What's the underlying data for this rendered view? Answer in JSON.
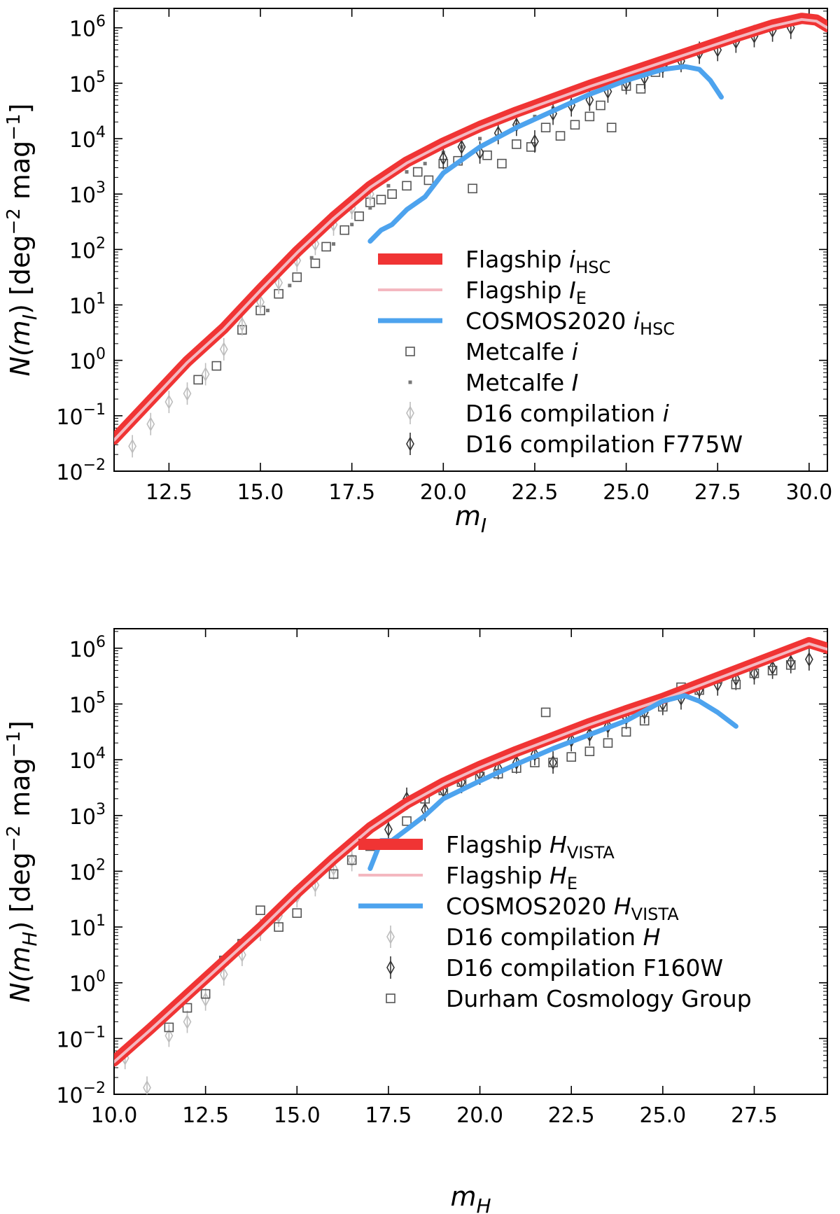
{
  "chart_data": [
    {
      "type": "line",
      "xlabel_base": "m",
      "xlabel_sub": "I",
      "ylabel_base": "N(m",
      "ylabel_sub": "I",
      "ylabel_tail": ") [deg",
      "ylabel_exp1": "−2",
      "ylabel_mid": " mag",
      "ylabel_exp2": "−1",
      "ylabel_end": "]",
      "xlim": [
        11.0,
        30.5
      ],
      "ylim_log10": [
        -2,
        6.35
      ],
      "log_y": true,
      "xticks": [
        "12.5",
        "15.0",
        "17.5",
        "20.0",
        "22.5",
        "25.0",
        "27.5",
        "30.0"
      ],
      "yticks": [
        {
          "base": "10",
          "exp": "−2"
        },
        {
          "base": "10",
          "exp": "−1"
        },
        {
          "base": "10",
          "exp": "0"
        },
        {
          "base": "10",
          "exp": "1"
        },
        {
          "base": "10",
          "exp": "2"
        },
        {
          "base": "10",
          "exp": "3"
        },
        {
          "base": "10",
          "exp": "4"
        },
        {
          "base": "10",
          "exp": "5"
        },
        {
          "base": "10",
          "exp": "6"
        }
      ],
      "legend_position": "lower-right",
      "series": [
        {
          "name": "Flagship",
          "sub": "HSC",
          "italic": "i",
          "kind": "thick-line",
          "color": "#f03434",
          "x": [
            11.0,
            12.0,
            13.0,
            14.0,
            15.0,
            16.0,
            17.0,
            18.0,
            19.0,
            20.0,
            21.0,
            22.0,
            23.0,
            24.0,
            25.0,
            26.0,
            27.0,
            28.0,
            29.0,
            29.8,
            30.2,
            30.5
          ],
          "log10_y": [
            -1.42,
            -0.72,
            -0.02,
            0.58,
            1.28,
            1.96,
            2.58,
            3.14,
            3.58,
            3.92,
            4.22,
            4.48,
            4.72,
            4.96,
            5.18,
            5.4,
            5.62,
            5.84,
            6.05,
            6.17,
            6.14,
            6.02
          ]
        },
        {
          "name": "Flagship",
          "sub": "E",
          "italic": "I",
          "kind": "thin-line",
          "color": "#f4b8c0",
          "x": [
            11.0,
            12.0,
            13.0,
            14.0,
            15.0,
            16.0,
            17.0,
            18.0,
            19.0,
            20.0,
            21.0,
            22.0,
            23.0,
            24.0,
            25.0,
            26.0,
            27.0,
            28.0,
            29.0,
            29.8,
            30.2,
            30.5
          ],
          "log10_y": [
            -1.44,
            -0.74,
            -0.04,
            0.56,
            1.26,
            1.94,
            2.56,
            3.12,
            3.56,
            3.9,
            4.2,
            4.46,
            4.7,
            4.94,
            5.16,
            5.38,
            5.6,
            5.82,
            6.03,
            6.15,
            6.12,
            6.0
          ]
        },
        {
          "name": "COSMOS2020",
          "sub": "HSC",
          "italic": "i",
          "kind": "line",
          "color": "#4da3ee",
          "x": [
            18.0,
            18.3,
            18.6,
            19.0,
            19.5,
            20.0,
            21.0,
            22.0,
            23.0,
            24.0,
            25.0,
            26.0,
            26.6,
            27.0,
            27.3,
            27.6
          ],
          "log10_y": [
            2.15,
            2.35,
            2.45,
            2.72,
            2.95,
            3.38,
            3.85,
            4.2,
            4.5,
            4.8,
            5.05,
            5.25,
            5.3,
            5.25,
            5.05,
            4.75
          ]
        },
        {
          "name": "Metcalfe",
          "italic": "i",
          "kind": "open-square",
          "color": "#555555",
          "x": [
            13.3,
            13.8,
            14.5,
            15.0,
            15.5,
            16.0,
            16.5,
            16.8,
            17.3,
            17.7,
            18.0,
            18.3,
            18.6,
            19.0,
            19.3,
            19.6,
            20.0,
            20.4,
            20.8,
            21.2,
            21.6,
            22.0,
            22.4,
            22.8,
            23.2,
            23.6,
            24.0,
            24.3,
            24.6,
            25.0,
            25.4,
            25.8,
            26.0
          ],
          "log10_y": [
            -0.35,
            -0.1,
            0.55,
            0.9,
            1.2,
            1.5,
            1.75,
            2.05,
            2.35,
            2.6,
            2.85,
            2.9,
            3.0,
            3.15,
            3.4,
            3.25,
            3.55,
            3.6,
            3.1,
            3.7,
            3.55,
            3.9,
            3.85,
            4.2,
            4.05,
            4.25,
            4.4,
            4.6,
            4.2,
            4.95,
            4.9,
            5.2,
            5.35
          ]
        },
        {
          "name": "Metcalfe",
          "italic": "I",
          "kind": "small-square",
          "color": "#777777",
          "x": [
            15.2,
            15.8,
            16.4,
            17.0,
            17.5,
            18.0,
            18.5,
            19.0,
            19.5,
            20.0,
            20.5,
            21.0,
            21.5,
            22.0,
            22.5,
            23.0
          ],
          "log10_y": [
            0.9,
            1.35,
            1.85,
            2.1,
            2.45,
            2.75,
            3.15,
            3.4,
            3.55,
            3.75,
            3.85,
            4.0,
            4.05,
            4.25,
            4.4,
            4.55
          ]
        },
        {
          "name": "D16 compilation",
          "italic": "i",
          "kind": "light-diamond",
          "color": "#bdbdbd",
          "x": [
            11.5,
            12.0,
            12.5,
            13.0,
            13.5,
            14.0,
            14.5,
            15.0,
            15.5,
            16.0,
            16.5,
            17.0,
            17.5,
            18.0
          ],
          "log10_y": [
            -1.55,
            -1.15,
            -0.75,
            -0.6,
            -0.25,
            0.2,
            0.65,
            1.05,
            1.4,
            1.8,
            2.1,
            2.45,
            2.75,
            3.0
          ]
        },
        {
          "name": "D16 compilation F775W",
          "kind": "dark-diamond",
          "color": "#333333",
          "x": [
            20.0,
            20.5,
            21.0,
            21.5,
            22.0,
            22.5,
            23.0,
            23.5,
            24.0,
            24.5,
            25.0,
            25.5,
            26.0,
            26.5,
            27.0,
            27.5,
            28.0,
            28.5,
            29.0,
            29.5
          ],
          "log10_y": [
            3.65,
            3.85,
            3.75,
            4.1,
            4.25,
            3.95,
            4.45,
            4.6,
            4.7,
            4.85,
            5.0,
            5.1,
            5.3,
            5.4,
            5.55,
            5.6,
            5.75,
            5.85,
            5.95,
            6.0
          ]
        }
      ]
    },
    {
      "type": "line",
      "xlabel_base": "m",
      "xlabel_sub": "H",
      "ylabel_base": "N(m",
      "ylabel_sub": "H",
      "ylabel_tail": ") [deg",
      "ylabel_exp1": "−2",
      "ylabel_mid": " mag",
      "ylabel_exp2": "−1",
      "ylabel_end": "]",
      "xlim": [
        10.0,
        29.5
      ],
      "ylim_log10": [
        -2,
        6.35
      ],
      "log_y": true,
      "xticks": [
        "10.0",
        "12.5",
        "15.0",
        "17.5",
        "20.0",
        "22.5",
        "25.0",
        "27.5"
      ],
      "yticks": [
        {
          "base": "10",
          "exp": "−2"
        },
        {
          "base": "10",
          "exp": "−1"
        },
        {
          "base": "10",
          "exp": "0"
        },
        {
          "base": "10",
          "exp": "1"
        },
        {
          "base": "10",
          "exp": "2"
        },
        {
          "base": "10",
          "exp": "3"
        },
        {
          "base": "10",
          "exp": "4"
        },
        {
          "base": "10",
          "exp": "5"
        },
        {
          "base": "10",
          "exp": "6"
        }
      ],
      "legend_position": "lower-right",
      "series": [
        {
          "name": "Flagship",
          "sub": "VISTA",
          "italic": "H",
          "kind": "thick-line",
          "color": "#f03434",
          "x": [
            10.0,
            11.0,
            12.0,
            13.0,
            14.0,
            15.0,
            16.0,
            17.0,
            18.0,
            19.0,
            20.0,
            21.0,
            22.0,
            23.0,
            24.0,
            25.0,
            26.0,
            27.0,
            28.0,
            29.0,
            29.5
          ],
          "log10_y": [
            -1.4,
            -0.82,
            -0.22,
            0.38,
            0.98,
            1.62,
            2.22,
            2.78,
            3.22,
            3.58,
            3.88,
            4.15,
            4.4,
            4.65,
            4.88,
            5.1,
            5.35,
            5.6,
            5.85,
            6.1,
            6.0
          ]
        },
        {
          "name": "Flagship",
          "sub": "E",
          "italic": "H",
          "kind": "thin-line",
          "color": "#f4b8c0",
          "x": [
            10.0,
            11.0,
            12.0,
            13.0,
            14.0,
            15.0,
            16.0,
            17.0,
            18.0,
            19.0,
            20.0,
            21.0,
            22.0,
            23.0,
            24.0,
            25.0,
            26.0,
            27.0,
            28.0,
            29.0,
            29.5
          ],
          "log10_y": [
            -1.42,
            -0.84,
            -0.24,
            0.36,
            0.96,
            1.6,
            2.2,
            2.76,
            3.2,
            3.56,
            3.86,
            4.13,
            4.38,
            4.63,
            4.86,
            5.08,
            5.33,
            5.58,
            5.83,
            6.08,
            5.98
          ]
        },
        {
          "name": "COSMOS2020",
          "sub": "VISTA",
          "italic": "H",
          "kind": "line",
          "color": "#4da3ee",
          "x": [
            17.0,
            17.3,
            17.6,
            18.0,
            18.5,
            19.0,
            20.0,
            21.0,
            22.0,
            23.0,
            24.0,
            25.0,
            25.6,
            26.0,
            26.5,
            27.0
          ],
          "log10_y": [
            2.05,
            2.55,
            2.55,
            2.75,
            3.0,
            3.3,
            3.62,
            3.92,
            4.2,
            4.45,
            4.7,
            5.05,
            5.15,
            5.05,
            4.85,
            4.6
          ]
        },
        {
          "name": "D16 compilation",
          "italic": "H",
          "kind": "light-diamond",
          "color": "#bdbdbd",
          "x": [
            10.3,
            10.9,
            11.5,
            12.0,
            12.5,
            13.0,
            13.5,
            14.0,
            14.5,
            15.0,
            15.5,
            16.0,
            16.5
          ],
          "log10_y": [
            -1.35,
            -1.88,
            -0.95,
            -0.7,
            -0.3,
            0.15,
            0.5,
            0.95,
            1.2,
            1.55,
            1.75,
            2.05,
            2.2
          ]
        },
        {
          "name": "D16 compilation F160W",
          "kind": "dark-diamond",
          "color": "#333333",
          "x": [
            17.5,
            18.0,
            18.5,
            19.0,
            19.5,
            20.0,
            20.5,
            21.0,
            21.5,
            22.0,
            22.5,
            23.0,
            23.5,
            24.0,
            24.5,
            25.0,
            25.5,
            26.0,
            26.5,
            27.0,
            27.5,
            28.0,
            28.5,
            29.0
          ],
          "log10_y": [
            2.75,
            3.3,
            3.1,
            3.45,
            3.6,
            3.75,
            3.85,
            3.95,
            4.1,
            3.95,
            4.35,
            4.45,
            4.6,
            4.75,
            4.85,
            5.0,
            5.1,
            5.25,
            5.35,
            5.45,
            5.55,
            5.65,
            5.75,
            5.8
          ]
        },
        {
          "name": "Durham Cosmology Group",
          "kind": "open-square",
          "color": "#555555",
          "x": [
            11.5,
            12.0,
            12.5,
            13.0,
            13.5,
            14.0,
            14.5,
            15.0,
            16.0,
            16.5,
            17.0,
            17.5,
            18.0,
            18.5,
            19.0,
            19.5,
            20.0,
            20.5,
            21.0,
            21.5,
            21.8,
            22.0,
            22.5,
            23.0,
            23.5,
            24.0,
            24.5,
            25.0,
            25.5,
            26.0,
            26.5,
            27.0,
            27.5,
            28.0,
            28.5
          ],
          "log10_y": [
            -0.8,
            -0.45,
            -0.2,
            0.4,
            0.7,
            1.3,
            1.0,
            1.25,
            1.95,
            2.2,
            2.45,
            2.5,
            2.9,
            3.3,
            3.45,
            3.6,
            3.7,
            3.75,
            3.85,
            3.95,
            4.85,
            3.95,
            4.05,
            4.15,
            4.3,
            4.5,
            4.7,
            4.95,
            5.3,
            5.25,
            5.45,
            5.35,
            5.55,
            5.6,
            5.7
          ]
        }
      ]
    }
  ]
}
